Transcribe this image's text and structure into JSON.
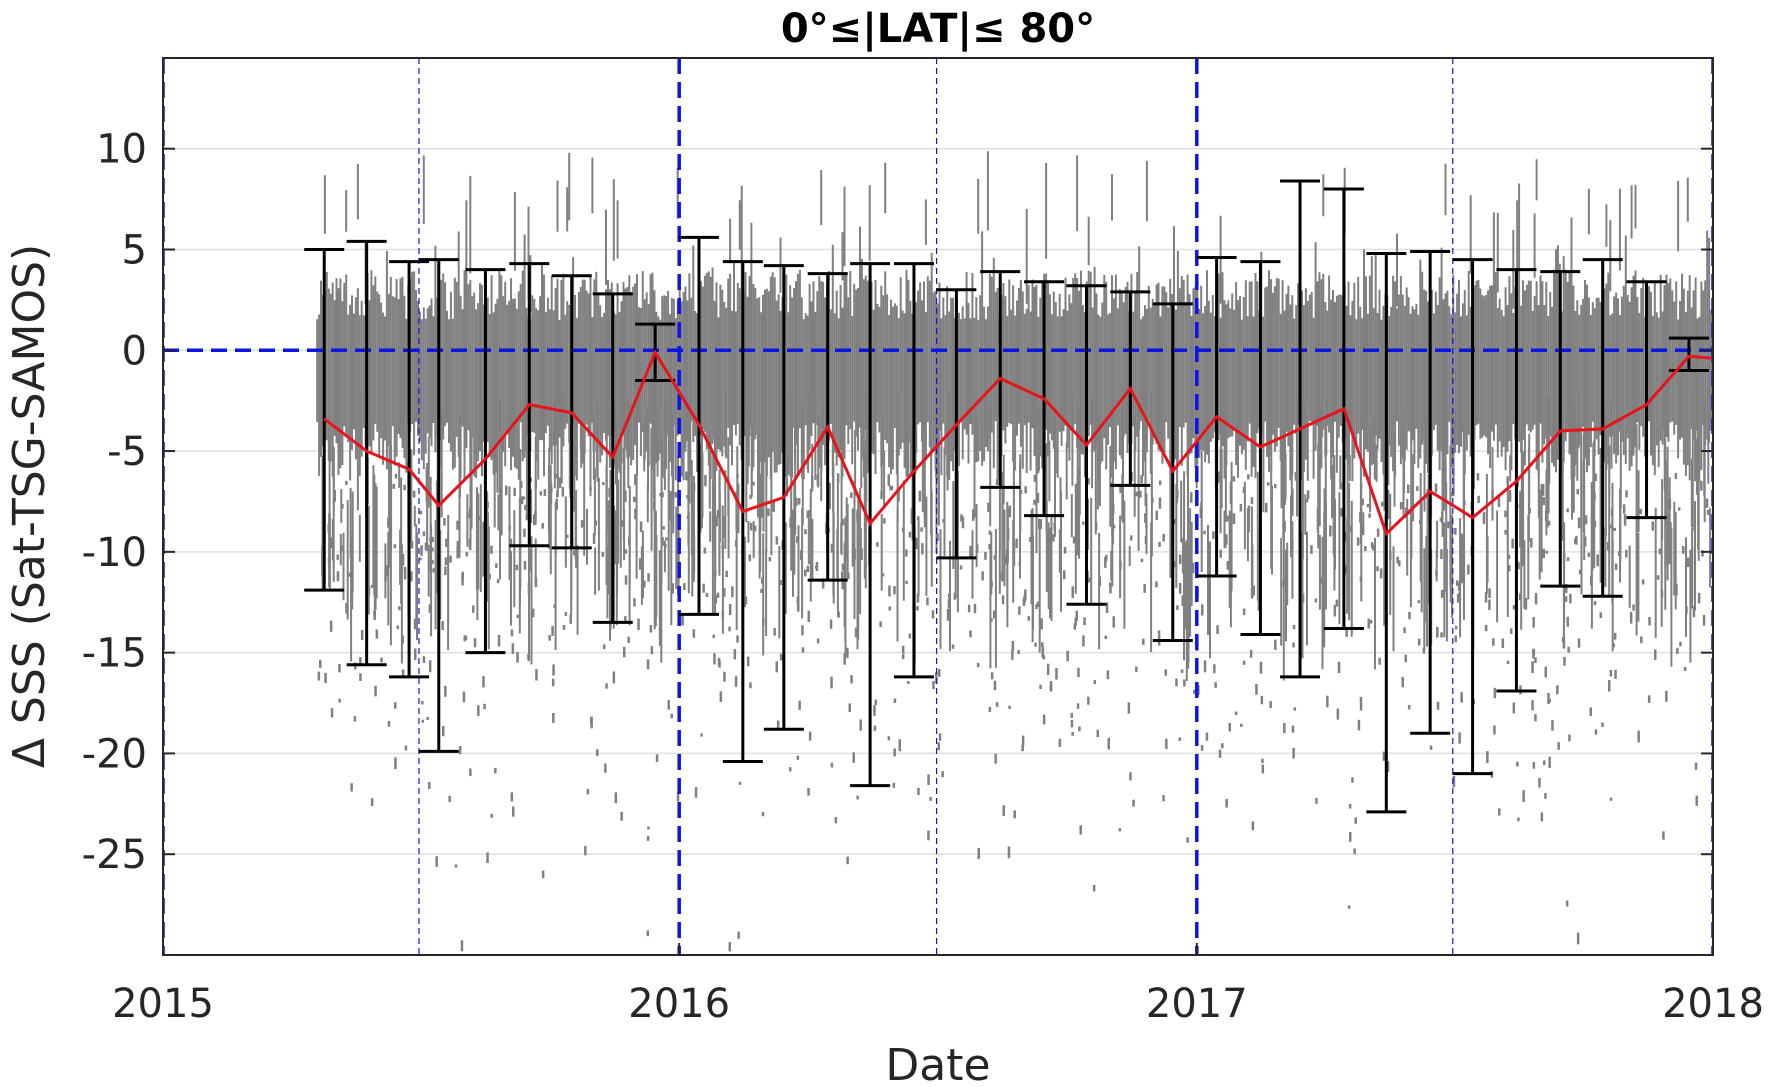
{
  "chart_data": {
    "type": "line",
    "title": "0°≤|LAT|≤ 80°",
    "xlabel": "Date",
    "ylabel": "Δ SSS (Sat-TSG-SAMOS)",
    "xlim": [
      "2015-01-01",
      "2018-01-01"
    ],
    "ylim": [
      -30,
      14.5
    ],
    "grid": true,
    "legend": "none",
    "x_ticks": [
      {
        "date": "2015-01-01",
        "label": "2015"
      },
      {
        "date": "2016-01-01",
        "label": "2016"
      },
      {
        "date": "2017-01-01",
        "label": "2017"
      },
      {
        "date": "2018-01-01",
        "label": "2018"
      }
    ],
    "y_ticks": [
      {
        "value": 10,
        "label": "10"
      },
      {
        "value": 5,
        "label": "5"
      },
      {
        "value": 0,
        "label": "0"
      },
      {
        "value": -5,
        "label": "-5"
      },
      {
        "value": -10,
        "label": "-10"
      },
      {
        "value": -15,
        "label": "-15"
      },
      {
        "value": -20,
        "label": "-20"
      },
      {
        "value": -25,
        "label": "-25"
      }
    ],
    "reference_lines": {
      "year_boundaries": [
        "2015-01-01",
        "2016-01-01",
        "2017-01-01",
        "2018-01-01"
      ],
      "mid_year": [
        "2015-07-01",
        "2016-07-01",
        "2017-07-01"
      ],
      "zero_line": 0
    },
    "scatter_region": {
      "start": "2015-04-20",
      "end": "2018-01-01"
    },
    "series": [
      {
        "type": "line",
        "values": [
          {
            "x": "2015-04-25",
            "y": -3.4
          },
          {
            "x": "2015-05-25",
            "y": -5.0
          },
          {
            "x": "2015-06-24",
            "y": -5.9
          },
          {
            "x": "2015-07-15",
            "y": -7.7
          },
          {
            "x": "2015-08-17",
            "y": -5.4
          },
          {
            "x": "2015-09-17",
            "y": -2.7
          },
          {
            "x": "2015-10-17",
            "y": -3.1
          },
          {
            "x": "2015-11-15",
            "y": -5.3
          },
          {
            "x": "2015-12-15",
            "y": -0.1
          },
          {
            "x": "2016-01-15",
            "y": -3.7
          },
          {
            "x": "2016-02-15",
            "y": -8.0
          },
          {
            "x": "2016-03-15",
            "y": -7.3
          },
          {
            "x": "2016-04-15",
            "y": -3.8
          },
          {
            "x": "2016-05-15",
            "y": -8.6
          },
          {
            "x": "2016-06-15",
            "y": -6.0
          },
          {
            "x": "2016-07-15",
            "y": -3.7
          },
          {
            "x": "2016-08-15",
            "y": -1.4
          },
          {
            "x": "2016-09-15",
            "y": -2.4
          },
          {
            "x": "2016-10-15",
            "y": -4.7
          },
          {
            "x": "2016-11-15",
            "y": -1.9
          },
          {
            "x": "2016-12-15",
            "y": -6.0
          },
          {
            "x": "2017-01-15",
            "y": -3.3
          },
          {
            "x": "2017-02-15",
            "y": -4.8
          },
          {
            "x": "2017-03-15",
            "y": -3.9
          },
          {
            "x": "2017-04-15",
            "y": -2.9
          },
          {
            "x": "2017-05-15",
            "y": -9.1
          },
          {
            "x": "2017-06-15",
            "y": -7.0
          },
          {
            "x": "2017-07-15",
            "y": -8.3
          },
          {
            "x": "2017-08-15",
            "y": -6.5
          },
          {
            "x": "2017-09-15",
            "y": -4.0
          },
          {
            "x": "2017-10-15",
            "y": -3.9
          },
          {
            "x": "2017-11-15",
            "y": -2.7
          },
          {
            "x": "2017-12-15",
            "y": -0.3
          },
          {
            "x": "2018-01-01",
            "y": -0.4
          }
        ]
      },
      {
        "type": "errorbar",
        "values": [
          {
            "x": "2015-04-25",
            "lower": -11.9,
            "upper": 5.0
          },
          {
            "x": "2015-05-25",
            "lower": -15.6,
            "upper": 5.4
          },
          {
            "x": "2015-06-24",
            "lower": -16.2,
            "upper": 4.4
          },
          {
            "x": "2015-07-15",
            "lower": -19.9,
            "upper": 4.5
          },
          {
            "x": "2015-08-17",
            "lower": -15.0,
            "upper": 4.0
          },
          {
            "x": "2015-09-17",
            "lower": -9.7,
            "upper": 4.3
          },
          {
            "x": "2015-10-17",
            "lower": -9.8,
            "upper": 3.7
          },
          {
            "x": "2015-11-15",
            "lower": -13.5,
            "upper": 2.8
          },
          {
            "x": "2015-12-15",
            "lower": -1.5,
            "upper": 1.3
          },
          {
            "x": "2016-01-15",
            "lower": -13.1,
            "upper": 5.6
          },
          {
            "x": "2016-02-15",
            "lower": -20.4,
            "upper": 4.4
          },
          {
            "x": "2016-03-15",
            "lower": -18.8,
            "upper": 4.2
          },
          {
            "x": "2016-04-15",
            "lower": -11.4,
            "upper": 3.8
          },
          {
            "x": "2016-05-15",
            "lower": -21.6,
            "upper": 4.3
          },
          {
            "x": "2016-06-15",
            "lower": -16.2,
            "upper": 4.3
          },
          {
            "x": "2016-07-15",
            "lower": -10.3,
            "upper": 3.0
          },
          {
            "x": "2016-08-15",
            "lower": -6.8,
            "upper": 3.9
          },
          {
            "x": "2016-09-15",
            "lower": -8.2,
            "upper": 3.4
          },
          {
            "x": "2016-10-15",
            "lower": -12.6,
            "upper": 3.2
          },
          {
            "x": "2016-11-15",
            "lower": -6.7,
            "upper": 2.9
          },
          {
            "x": "2016-12-15",
            "lower": -14.4,
            "upper": 2.3
          },
          {
            "x": "2017-01-15",
            "lower": -11.2,
            "upper": 4.6
          },
          {
            "x": "2017-02-15",
            "lower": -14.1,
            "upper": 4.4
          },
          {
            "x": "2017-03-15",
            "lower": -16.2,
            "upper": 8.4
          },
          {
            "x": "2017-04-15",
            "lower": -13.8,
            "upper": 8.0
          },
          {
            "x": "2017-05-15",
            "lower": -22.9,
            "upper": 4.8
          },
          {
            "x": "2017-06-15",
            "lower": -19.0,
            "upper": 4.9
          },
          {
            "x": "2017-07-15",
            "lower": -21.0,
            "upper": 4.5
          },
          {
            "x": "2017-08-15",
            "lower": -16.9,
            "upper": 4.0
          },
          {
            "x": "2017-09-15",
            "lower": -11.7,
            "upper": 3.9
          },
          {
            "x": "2017-10-15",
            "lower": -12.2,
            "upper": 4.5
          },
          {
            "x": "2017-11-15",
            "lower": -8.3,
            "upper": 3.4
          },
          {
            "x": "2017-12-15",
            "lower": -1.0,
            "upper": 0.6
          }
        ]
      }
    ],
    "colors": {
      "scatter": "#808080",
      "mean_line": "#e8141c",
      "errorbar": "#000000",
      "reference_lines": "#0a16e8",
      "grid": "#dfdfdf",
      "axes": "#262626"
    }
  }
}
